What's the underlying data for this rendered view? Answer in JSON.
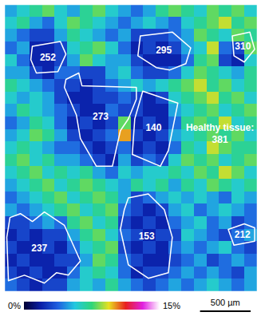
{
  "chart_data": {
    "type": "heatmap",
    "xlim": [
      0,
      2500
    ],
    "ylim": [
      0,
      2875
    ],
    "tick_labels": false,
    "cell_size": 125,
    "cells": [
      [
        5,
        6,
        7,
        8,
        6,
        5,
        7,
        8,
        6,
        5,
        4,
        5,
        7,
        8,
        7,
        6,
        8,
        7,
        8,
        6
      ],
      [
        6,
        7,
        5,
        4,
        6,
        8,
        7,
        6,
        5,
        4,
        5,
        6,
        5,
        4,
        6,
        7,
        8,
        9,
        7,
        8
      ],
      [
        5,
        4,
        3,
        3,
        5,
        7,
        6,
        5,
        4,
        5,
        3,
        3,
        3,
        4,
        5,
        8,
        7,
        6,
        8,
        7
      ],
      [
        4,
        5,
        2,
        2,
        3,
        6,
        7,
        8,
        6,
        4,
        2,
        3,
        2,
        3,
        5,
        6,
        9,
        4,
        3,
        8
      ],
      [
        6,
        4,
        2,
        2,
        3,
        5,
        8,
        6,
        5,
        5,
        3,
        2,
        2,
        2,
        4,
        7,
        8,
        3,
        2,
        6
      ],
      [
        5,
        5,
        3,
        2,
        4,
        4,
        3,
        3,
        5,
        6,
        4,
        3,
        3,
        4,
        6,
        8,
        7,
        6,
        5,
        7
      ],
      [
        7,
        6,
        5,
        4,
        3,
        3,
        2,
        3,
        4,
        5,
        6,
        5,
        6,
        7,
        8,
        9,
        7,
        8,
        6,
        7
      ],
      [
        6,
        5,
        6,
        5,
        3,
        2,
        2,
        3,
        3,
        4,
        3,
        2,
        3,
        6,
        7,
        8,
        9,
        7,
        8,
        6
      ],
      [
        5,
        7,
        6,
        5,
        4,
        3,
        2,
        2,
        4,
        3,
        3,
        2,
        2,
        5,
        6,
        7,
        8,
        6,
        7,
        8
      ],
      [
        4,
        5,
        7,
        6,
        4,
        2,
        3,
        2,
        3,
        8,
        2,
        3,
        2,
        4,
        7,
        8,
        7,
        9,
        6,
        7
      ],
      [
        5,
        6,
        8,
        7,
        5,
        3,
        2,
        3,
        4,
        10,
        3,
        2,
        3,
        5,
        6,
        7,
        8,
        7,
        8,
        6
      ],
      [
        6,
        7,
        6,
        5,
        4,
        4,
        3,
        2,
        3,
        4,
        2,
        3,
        2,
        4,
        7,
        6,
        9,
        8,
        7,
        7
      ],
      [
        7,
        8,
        6,
        7,
        5,
        5,
        4,
        3,
        2,
        5,
        3,
        4,
        3,
        6,
        8,
        7,
        8,
        6,
        7,
        8
      ],
      [
        6,
        7,
        8,
        6,
        7,
        6,
        7,
        5,
        4,
        6,
        5,
        6,
        6,
        7,
        6,
        8,
        7,
        9,
        8,
        6
      ],
      [
        5,
        6,
        7,
        8,
        6,
        7,
        8,
        7,
        6,
        5,
        7,
        6,
        7,
        5,
        7,
        6,
        8,
        7,
        6,
        7
      ],
      [
        4,
        5,
        6,
        7,
        8,
        6,
        7,
        8,
        7,
        5,
        3,
        4,
        5,
        6,
        5,
        6,
        5,
        4,
        6,
        5
      ],
      [
        5,
        4,
        5,
        6,
        7,
        8,
        6,
        7,
        8,
        4,
        3,
        2,
        3,
        5,
        6,
        4,
        5,
        6,
        5,
        4
      ],
      [
        3,
        3,
        4,
        5,
        4,
        7,
        8,
        6,
        7,
        3,
        2,
        3,
        2,
        4,
        5,
        6,
        4,
        5,
        3,
        4
      ],
      [
        2,
        3,
        2,
        3,
        3,
        5,
        7,
        8,
        6,
        4,
        3,
        2,
        3,
        3,
        6,
        5,
        4,
        3,
        4,
        5
      ],
      [
        3,
        2,
        2,
        3,
        2,
        4,
        6,
        7,
        8,
        3,
        2,
        3,
        2,
        4,
        5,
        4,
        5,
        6,
        4,
        3
      ],
      [
        2,
        3,
        2,
        2,
        3,
        3,
        5,
        8,
        7,
        4,
        3,
        2,
        2,
        3,
        4,
        5,
        3,
        4,
        5,
        4
      ],
      [
        3,
        2,
        3,
        2,
        2,
        4,
        6,
        7,
        6,
        4,
        2,
        3,
        3,
        4,
        5,
        4,
        5,
        4,
        3,
        5
      ],
      [
        4,
        3,
        2,
        3,
        3,
        5,
        6,
        5,
        7,
        5,
        4,
        3,
        4,
        5,
        4,
        5,
        6,
        5,
        4,
        5
      ]
    ],
    "color_bar": {
      "range": [
        0,
        15
      ],
      "ticks": [
        {
          "value": 0,
          "label": "0%"
        },
        {
          "value": 15,
          "label": "15%"
        }
      ]
    },
    "regions": [
      {
        "value": 252,
        "polygon": [
          [
            276,
            419
          ],
          [
            553,
            371
          ],
          [
            608,
            498
          ],
          [
            529,
            672
          ],
          [
            316,
            687
          ],
          [
            261,
            553
          ]
        ]
      },
      {
        "value": 295,
        "polygon": [
          [
            1343,
            316
          ],
          [
            1659,
            277
          ],
          [
            1841,
            435
          ],
          [
            1793,
            593
          ],
          [
            1635,
            656
          ],
          [
            1501,
            632
          ],
          [
            1319,
            514
          ]
        ]
      },
      {
        "value": 310,
        "polygon": [
          [
            2252,
            316
          ],
          [
            2425,
            277
          ],
          [
            2473,
            450
          ],
          [
            2370,
            577
          ],
          [
            2268,
            514
          ]
        ]
      },
      {
        "value": 273,
        "polygon": [
          [
            608,
            751
          ],
          [
            735,
            687
          ],
          [
            766,
            814
          ],
          [
            1304,
            830
          ],
          [
            1304,
            948
          ],
          [
            1225,
            1146
          ],
          [
            1146,
            1264
          ],
          [
            1067,
            1620
          ],
          [
            909,
            1620
          ],
          [
            751,
            1343
          ],
          [
            711,
            1106
          ],
          [
            593,
            830
          ]
        ]
      },
      {
        "value": 140,
        "polygon": [
          [
            1367,
            869
          ],
          [
            1714,
            988
          ],
          [
            1620,
            1462
          ],
          [
            1541,
            1620
          ],
          [
            1264,
            1501
          ],
          [
            1288,
            1146
          ]
        ]
      },
      {
        "value": 153,
        "polygon": [
          [
            1225,
            1936
          ],
          [
            1422,
            1896
          ],
          [
            1580,
            2054
          ],
          [
            1659,
            2331
          ],
          [
            1620,
            2686
          ],
          [
            1422,
            2741
          ],
          [
            1225,
            2607
          ],
          [
            1146,
            2252
          ],
          [
            1185,
            2054
          ]
        ]
      },
      {
        "value": 237,
        "polygon": [
          [
            55,
            2133
          ],
          [
            158,
            2094
          ],
          [
            277,
            2173
          ],
          [
            395,
            2078
          ],
          [
            593,
            2212
          ],
          [
            751,
            2568
          ],
          [
            632,
            2710
          ],
          [
            514,
            2686
          ],
          [
            395,
            2789
          ],
          [
            198,
            2710
          ],
          [
            40,
            2765
          ],
          [
            24,
            2331
          ]
        ]
      },
      {
        "value": 212,
        "polygon": [
          [
            2212,
            2252
          ],
          [
            2370,
            2196
          ],
          [
            2473,
            2236
          ],
          [
            2473,
            2370
          ],
          [
            2268,
            2410
          ]
        ]
      }
    ],
    "annotations": [
      {
        "text": "Healthy tissue:",
        "value": 381,
        "x": 2130,
        "y": 1290
      }
    ],
    "scale_bar": {
      "value": 500,
      "label": "500 µm"
    }
  }
}
